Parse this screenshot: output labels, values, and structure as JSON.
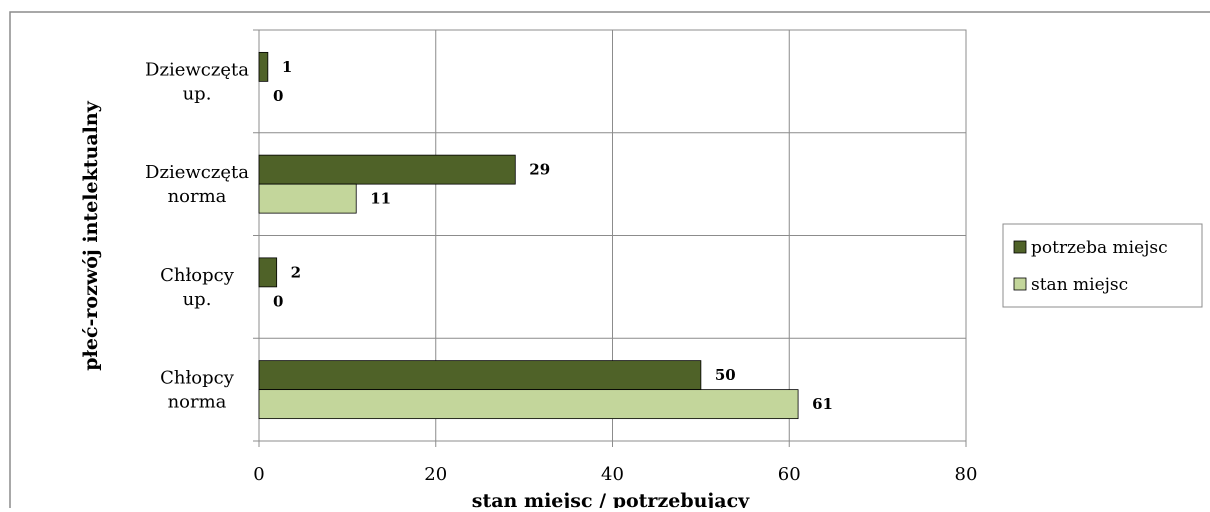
{
  "chart_data": {
    "type": "bar",
    "orientation": "horizontal",
    "categories": [
      "Dziewczęta up.",
      "Dziewczęta norma",
      "Chłopcy up.",
      "Chłopcy norma"
    ],
    "category_lines": [
      [
        "Dziewczęta",
        "up."
      ],
      [
        "Dziewczęta",
        "norma"
      ],
      [
        "Chłopcy",
        "up."
      ],
      [
        "Chłopcy",
        "norma"
      ]
    ],
    "series": [
      {
        "name": "potrzeba miejsc",
        "color": "#4f6228",
        "values": [
          1,
          29,
          2,
          50
        ]
      },
      {
        "name": "stan miejsc",
        "color": "#c3d69b",
        "values": [
          0,
          11,
          0,
          61
        ]
      }
    ],
    "xlim": [
      0,
      80
    ],
    "xticks": [
      0,
      20,
      40,
      60,
      80
    ],
    "xlabel": "stan miejsc / potrzebujący",
    "ylabel": "płeć-rozwój intelektualny",
    "grid": true,
    "legend_position": "right"
  }
}
